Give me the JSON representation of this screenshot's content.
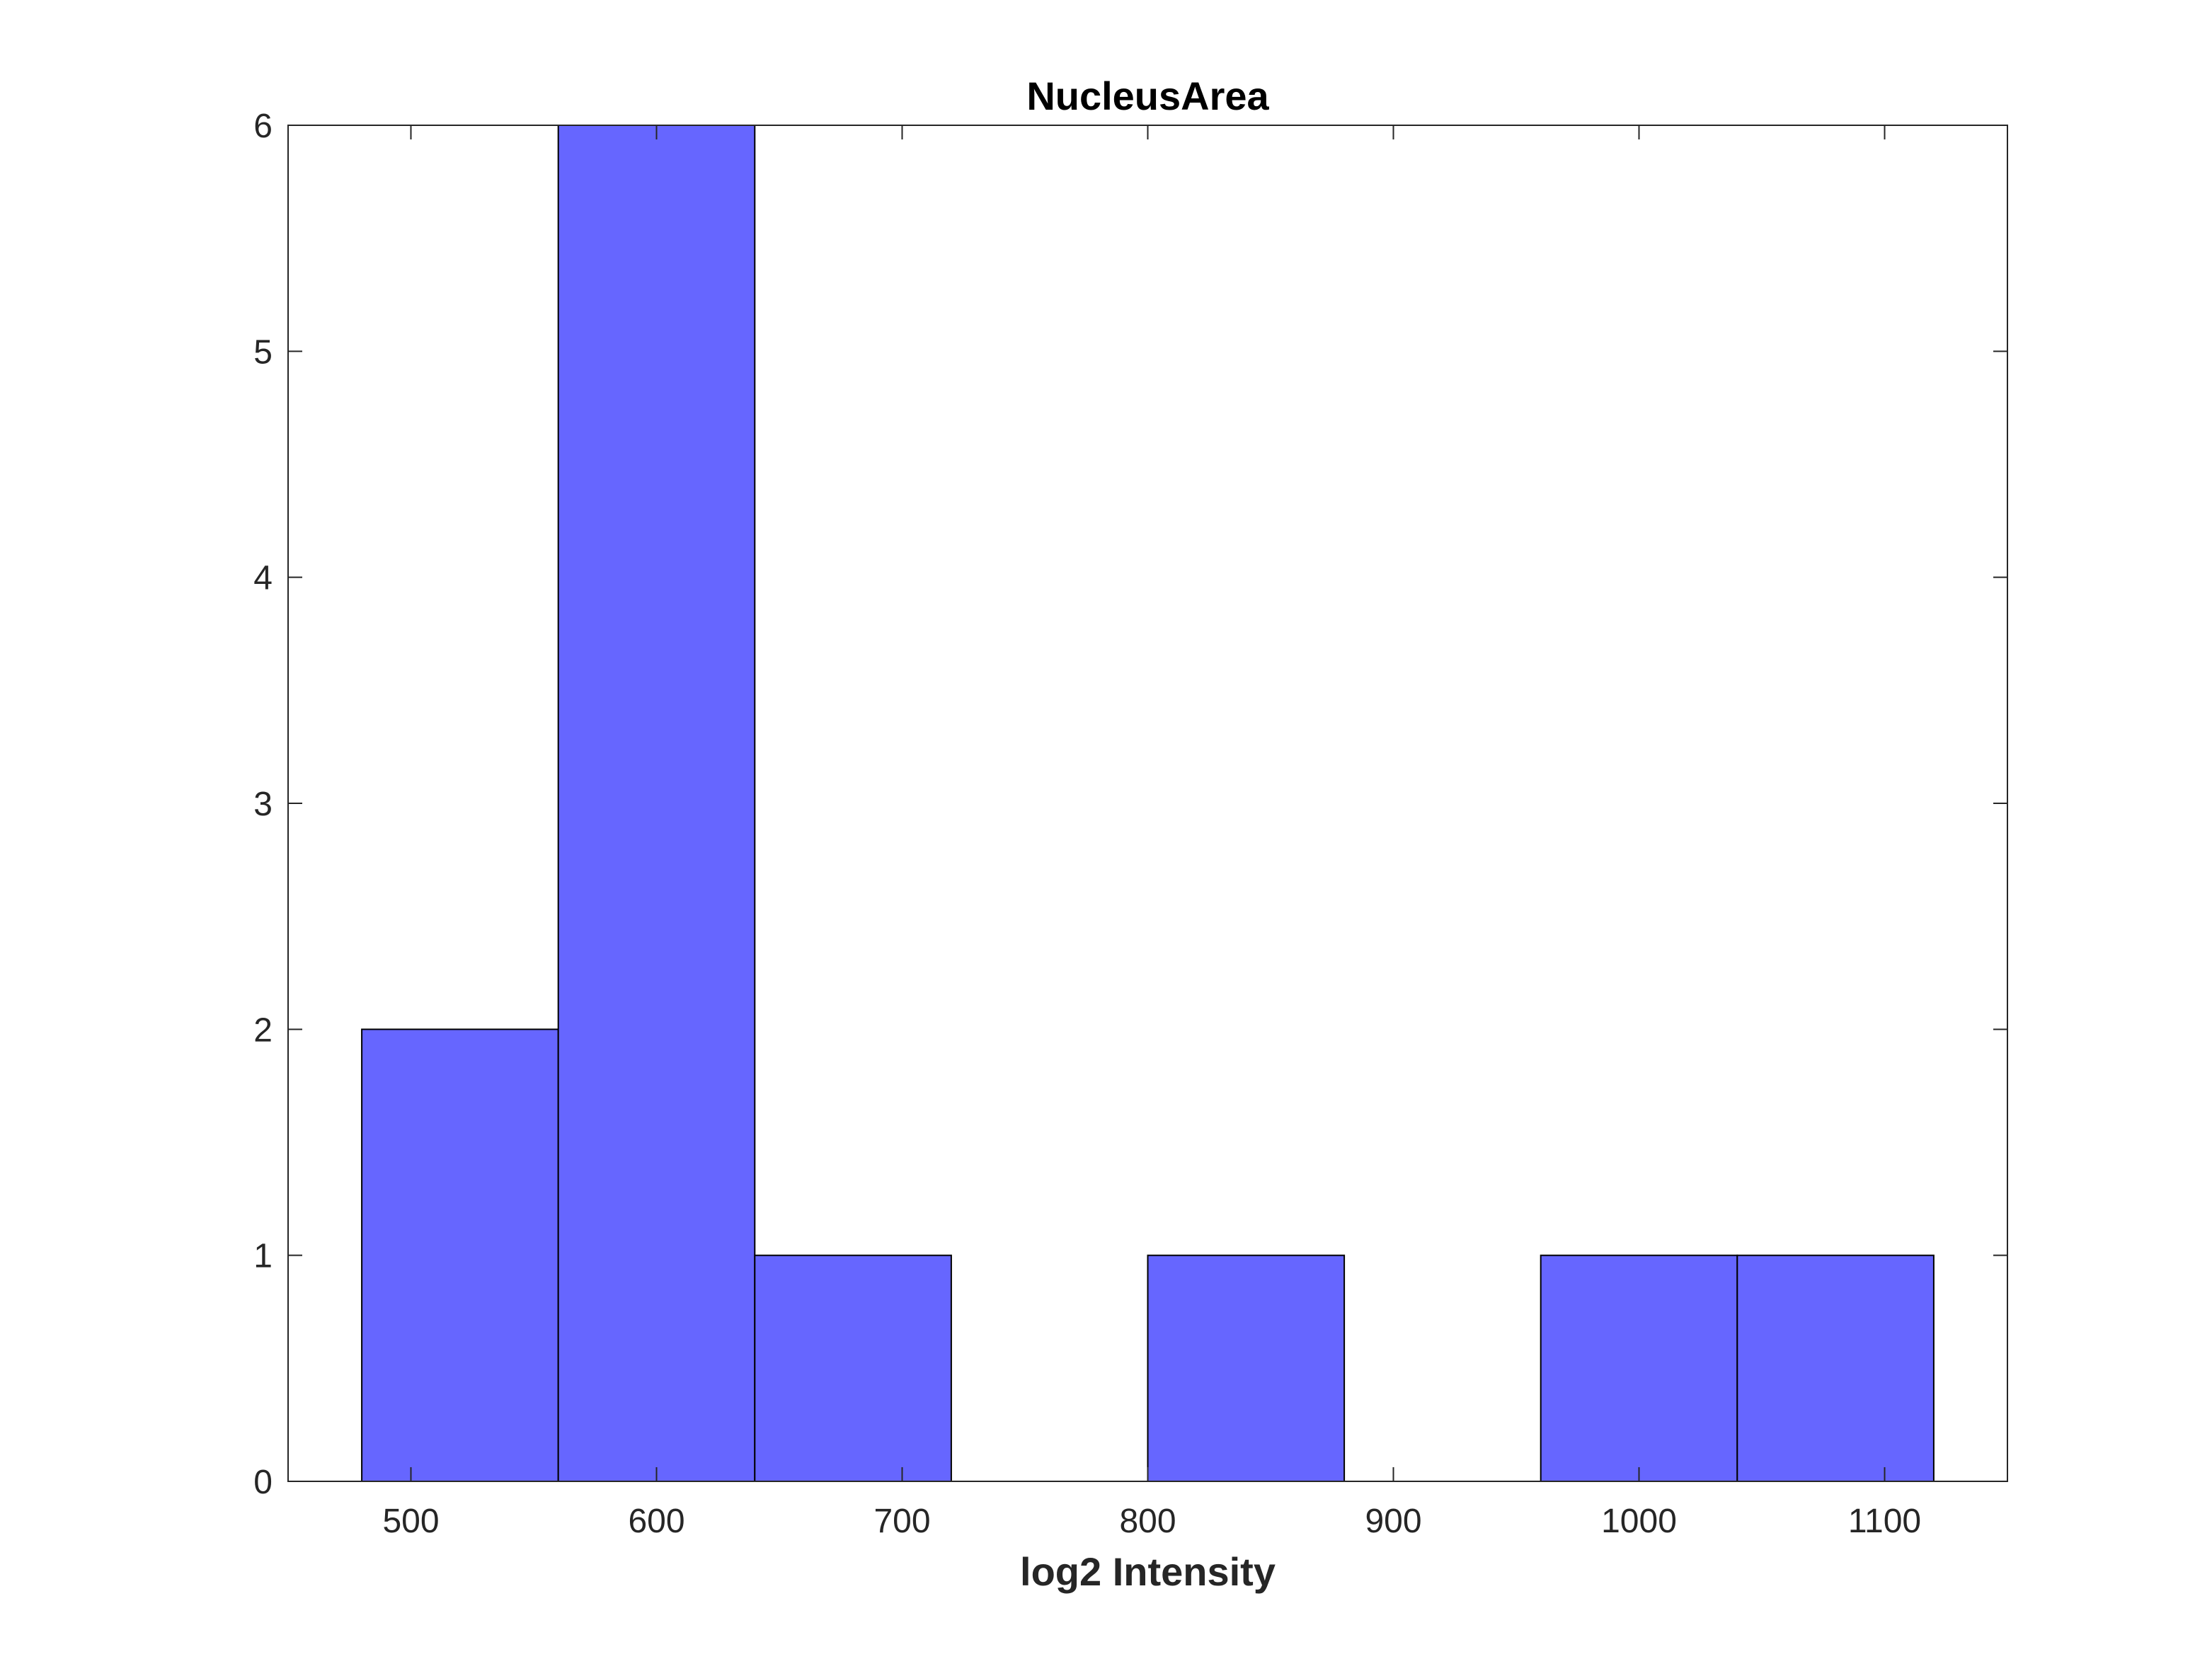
{
  "chart_data": {
    "type": "bar",
    "title": "NucleusArea",
    "xlabel": "log2 Intensity",
    "ylabel": "",
    "xlim": [
      450,
      1150
    ],
    "ylim": [
      0,
      6
    ],
    "xticks": [
      500,
      600,
      700,
      800,
      900,
      1000,
      1100
    ],
    "yticks": [
      0,
      1,
      2,
      3,
      4,
      5,
      6
    ],
    "bin_edges": [
      480,
      560,
      640,
      720,
      800,
      880,
      960,
      1040,
      1120
    ],
    "counts": [
      2,
      6,
      1,
      0,
      1,
      0,
      1,
      1
    ],
    "bar_color": "#6666ff",
    "edge_color": "#000000",
    "grid": false,
    "legend": "none"
  }
}
